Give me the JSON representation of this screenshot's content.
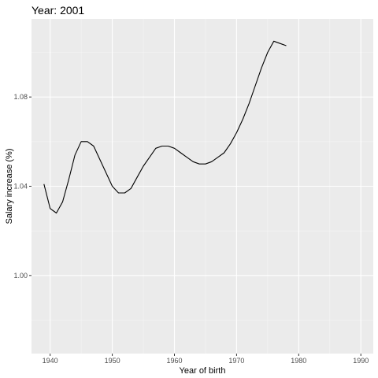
{
  "chart_data": {
    "type": "line",
    "title": "Year: 2001",
    "xlabel": "Year of birth",
    "ylabel": "Salary increase (%)",
    "xlim": [
      1937,
      1992
    ],
    "ylim": [
      0.965,
      1.115
    ],
    "xticks": [
      1940,
      1950,
      1960,
      1970,
      1980,
      1990
    ],
    "xtick_labels": [
      "1940",
      "1950",
      "1960",
      "1970",
      "1980",
      "1990"
    ],
    "yticks": [
      1.0,
      1.04,
      1.08
    ],
    "ytick_labels": [
      "1.00",
      "1.04",
      "1.08"
    ],
    "grid": true,
    "legend": "none",
    "series": [
      {
        "color": "#000000",
        "x": [
          1939,
          1940,
          1941,
          1942,
          1943,
          1944,
          1945,
          1946,
          1947,
          1948,
          1949,
          1950,
          1951,
          1952,
          1953,
          1954,
          1955,
          1956,
          1957,
          1958,
          1959,
          1960,
          1961,
          1962,
          1963,
          1964,
          1965,
          1966,
          1967,
          1968,
          1969,
          1970,
          1971,
          1972,
          1973,
          1974,
          1975,
          1976,
          1977,
          1978
        ],
        "values": [
          1.041,
          1.03,
          1.028,
          1.033,
          1.043,
          1.054,
          1.06,
          1.06,
          1.058,
          1.052,
          1.046,
          1.04,
          1.037,
          1.037,
          1.039,
          1.044,
          1.049,
          1.053,
          1.057,
          1.058,
          1.058,
          1.057,
          1.055,
          1.053,
          1.051,
          1.05,
          1.05,
          1.051,
          1.053,
          1.055,
          1.059,
          1.064,
          1.07,
          1.077,
          1.085,
          1.093,
          1.1,
          1.105,
          1.104,
          1.103
        ]
      }
    ]
  }
}
